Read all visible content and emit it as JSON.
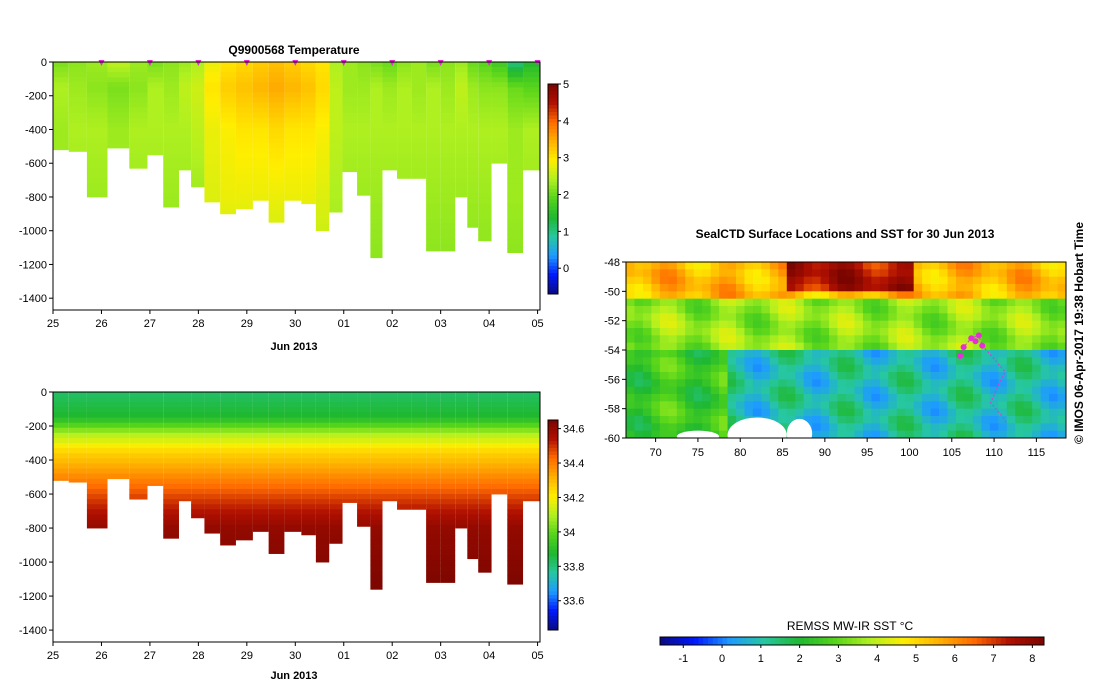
{
  "timestamp": "© IMOS 06-Apr-2017 19:38 Hobart Time",
  "colors": {
    "temp_scale": [
      "#0a0a80",
      "#0018ff",
      "#1e9bff",
      "#27c7a0",
      "#1fb830",
      "#55d41b",
      "#b0f020",
      "#ffee00",
      "#ffb000",
      "#ff6a00",
      "#b01000",
      "#7a0500"
    ],
    "no_data": "#ffffff",
    "cast_marker": "#e82ed8",
    "track": "#d83ad6"
  },
  "chart_data": [
    {
      "type": "heatmap",
      "title": "Q9900568  Temperature",
      "xlabel": "Jun 2013",
      "ylabel": "",
      "x_ticks": [
        "25",
        "26",
        "27",
        "28",
        "29",
        "30",
        "01",
        "02",
        "03",
        "04",
        "05"
      ],
      "x_range": [
        25,
        35.05
      ],
      "y_ticks": [
        0,
        -200,
        -400,
        -600,
        -800,
        -1000,
        -1200,
        -1400
      ],
      "y_range": [
        -1470,
        0
      ],
      "colorbar": {
        "ticks": [
          0,
          1,
          2,
          3,
          4,
          5
        ],
        "range": [
          -0.7,
          5
        ]
      },
      "casts": [
        {
          "t": 25.15,
          "depth": -520
        },
        {
          "t": 25.5,
          "depth": -530
        },
        {
          "t": 25.9,
          "depth": -800
        },
        {
          "t": 26.35,
          "depth": -510
        },
        {
          "t": 26.8,
          "depth": -630
        },
        {
          "t": 27.1,
          "depth": -550
        },
        {
          "t": 27.45,
          "depth": -860
        },
        {
          "t": 27.75,
          "depth": -640
        },
        {
          "t": 27.95,
          "depth": -740
        },
        {
          "t": 28.3,
          "depth": -830
        },
        {
          "t": 28.6,
          "depth": -900
        },
        {
          "t": 28.95,
          "depth": -870
        },
        {
          "t": 29.3,
          "depth": -820
        },
        {
          "t": 29.6,
          "depth": -950
        },
        {
          "t": 29.95,
          "depth": -820
        },
        {
          "t": 30.3,
          "depth": -840
        },
        {
          "t": 30.55,
          "depth": -1000
        },
        {
          "t": 30.85,
          "depth": -890
        },
        {
          "t": 31.1,
          "depth": -650
        },
        {
          "t": 31.45,
          "depth": -790
        },
        {
          "t": 31.65,
          "depth": -1160
        },
        {
          "t": 31.95,
          "depth": -640
        },
        {
          "t": 32.25,
          "depth": -690
        },
        {
          "t": 32.55,
          "depth": -690
        },
        {
          "t": 32.85,
          "depth": -1120
        },
        {
          "t": 33.15,
          "depth": -1120
        },
        {
          "t": 33.45,
          "depth": -800
        },
        {
          "t": 33.65,
          "depth": -980
        },
        {
          "t": 33.9,
          "depth": -1060
        },
        {
          "t": 34.2,
          "depth": -600
        },
        {
          "t": 34.55,
          "depth": -1130
        },
        {
          "t": 34.85,
          "depth": -640
        }
      ],
      "profile_levels": [
        {
          "depth": 0,
          "values": [
            2.1,
            2.2,
            2.3,
            2.5,
            2.3,
            2.1,
            2.2,
            2.3,
            2.4,
            2.8,
            3.0,
            3.1,
            3.2,
            3.3,
            3.2,
            3.1,
            3.0,
            2.4,
            2.3,
            2.2,
            2.1,
            2.0,
            2.2,
            2.3,
            2.1,
            2.2,
            2.3,
            2.0,
            1.9,
            1.7,
            1.0,
            1.4
          ]
        },
        {
          "depth": -150,
          "values": [
            2.4,
            2.3,
            2.2,
            2.1,
            2.2,
            2.4,
            2.3,
            2.5,
            2.6,
            3.0,
            3.2,
            3.3,
            3.4,
            3.5,
            3.4,
            3.3,
            3.1,
            2.5,
            2.3,
            2.3,
            2.4,
            2.3,
            2.4,
            2.3,
            2.4,
            2.3,
            2.5,
            2.3,
            2.2,
            2.2,
            2.0,
            1.9
          ]
        },
        {
          "depth": -400,
          "values": [
            2.3,
            2.4,
            2.4,
            2.3,
            2.4,
            2.4,
            2.4,
            2.4,
            2.5,
            2.8,
            2.9,
            3.0,
            3.0,
            3.1,
            3.0,
            3.0,
            2.9,
            2.5,
            2.4,
            2.4,
            2.4,
            2.4,
            2.4,
            2.4,
            2.4,
            2.4,
            2.4,
            2.4,
            2.4,
            2.4,
            2.3,
            2.4
          ]
        },
        {
          "depth": -800,
          "values": [
            2.3,
            2.3,
            2.3,
            2.3,
            2.3,
            2.3,
            2.3,
            2.3,
            2.3,
            2.7,
            2.8,
            2.8,
            2.8,
            2.8,
            2.8,
            2.8,
            2.7,
            2.4,
            2.3,
            2.3,
            2.3,
            2.3,
            2.3,
            2.3,
            2.3,
            2.3,
            2.3,
            2.3,
            2.3,
            2.3,
            2.3,
            2.3
          ]
        },
        {
          "depth": -1200,
          "values": [
            2.2,
            2.2,
            2.2,
            2.2,
            2.2,
            2.2,
            2.2,
            2.2,
            2.2,
            2.5,
            2.5,
            2.5,
            2.5,
            2.5,
            2.5,
            2.5,
            2.5,
            2.3,
            2.2,
            2.2,
            2.2,
            2.2,
            2.2,
            2.2,
            2.2,
            2.2,
            2.2,
            2.2,
            2.2,
            2.2,
            2.2,
            2.2
          ]
        }
      ],
      "surface_markers": [
        26,
        27,
        28,
        29,
        30,
        31,
        32,
        33,
        34,
        35
      ]
    },
    {
      "type": "heatmap",
      "title": "",
      "xlabel": "Jun 2013",
      "ylabel": "",
      "x_ticks": [
        "25",
        "26",
        "27",
        "28",
        "29",
        "30",
        "01",
        "02",
        "03",
        "04",
        "05"
      ],
      "x_range": [
        25,
        35.05
      ],
      "y_ticks": [
        0,
        -200,
        -400,
        -600,
        -800,
        -1000,
        -1200,
        -1400
      ],
      "y_range": [
        -1470,
        0
      ],
      "colorbar": {
        "ticks": [
          "33.6",
          "33.8",
          "34",
          "34.2",
          "34.4",
          "34.6"
        ],
        "range": [
          33.43,
          34.65
        ]
      },
      "profile_levels": [
        {
          "depth": 0,
          "values": 33.82
        },
        {
          "depth": -150,
          "values": 33.88
        },
        {
          "depth": -250,
          "values": 34.1
        },
        {
          "depth": -350,
          "values": 34.25
        },
        {
          "depth": -500,
          "values": 34.38
        },
        {
          "depth": -650,
          "values": 34.5
        },
        {
          "depth": -800,
          "values": 34.6
        },
        {
          "depth": -1200,
          "values": 34.65
        }
      ]
    },
    {
      "type": "heatmap",
      "title": "SealCTD Surface Locations and SST for 30 Jun 2013",
      "xlabel": "",
      "ylabel": "",
      "x_ticks": [
        "70",
        "75",
        "80",
        "85",
        "90",
        "95",
        "100",
        "105",
        "110",
        "115"
      ],
      "x_range": [
        66.5,
        118.5
      ],
      "y_ticks": [
        "-48",
        "-50",
        "-52",
        "-54",
        "-56",
        "-58",
        "-60"
      ],
      "y_range": [
        -60,
        -48
      ],
      "colorbar": {
        "label": "REMSS MW-IR SST °C",
        "ticks": [
          "-1",
          "0",
          "1",
          "2",
          "3",
          "4",
          "5",
          "6",
          "7",
          "8"
        ],
        "range": [
          -1.6,
          8.3
        ]
      },
      "sst_zones": [
        {
          "lon_min": 66.5,
          "lon_max": 118.5,
          "lat_min": -50.5,
          "lat_max": -48,
          "sst": 5.5
        },
        {
          "lon_min": 86,
          "lon_max": 100,
          "lat_min": -50,
          "lat_max": -48,
          "sst": 7.5
        },
        {
          "lon_min": 66.5,
          "lon_max": 118.5,
          "lat_min": -54,
          "lat_max": -50.5,
          "sst": 3.5
        },
        {
          "lon_min": 78,
          "lon_max": 118.5,
          "lat_min": -60,
          "lat_max": -54,
          "sst": 1.0
        },
        {
          "lon_min": 66.5,
          "lon_max": 78,
          "lat_min": -60,
          "lat_max": -54,
          "sst": 2.5
        }
      ],
      "ice_patches": [
        {
          "lon": 82,
          "lat": -59.8,
          "rlon": 3.5,
          "rlat": 1.2
        },
        {
          "lon": 87,
          "lat": -59.7,
          "rlon": 1.5,
          "rlat": 1.0
        },
        {
          "lon": 75,
          "lat": -59.9,
          "rlon": 2.5,
          "rlat": 0.4
        }
      ],
      "cast_locations": [
        {
          "lon": 106.0,
          "lat": -54.4
        },
        {
          "lon": 106.4,
          "lat": -53.8
        },
        {
          "lon": 107.3,
          "lat": -53.2
        },
        {
          "lon": 108.2,
          "lat": -53.0
        },
        {
          "lon": 108.6,
          "lat": -53.7
        },
        {
          "lon": 107.8,
          "lat": -53.4
        }
      ],
      "track": [
        {
          "lon": 106.0,
          "lat": -54.4
        },
        {
          "lon": 106.4,
          "lat": -53.8
        },
        {
          "lon": 107.3,
          "lat": -53.2
        },
        {
          "lon": 108.2,
          "lat": -53.0
        },
        {
          "lon": 108.6,
          "lat": -53.7
        },
        {
          "lon": 110.0,
          "lat": -54.6
        },
        {
          "lon": 111.3,
          "lat": -55.5
        },
        {
          "lon": 110.5,
          "lat": -56.4
        },
        {
          "lon": 109.6,
          "lat": -57.6
        },
        {
          "lon": 110.8,
          "lat": -58.4
        },
        {
          "lon": 111.5,
          "lat": -59.0
        }
      ]
    }
  ]
}
